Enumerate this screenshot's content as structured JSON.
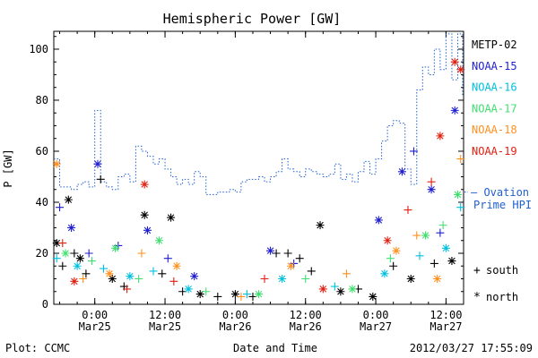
{
  "chart_data": {
    "type": "scatter",
    "title": "Hemispheric Power [GW]",
    "ylabel": "P [GW]",
    "xlabel": "Date and Time",
    "xlim": [
      "2012-03-24T17:00",
      "2012-03-27T15:00"
    ],
    "ylim": [
      0,
      107
    ],
    "yticks": [
      0,
      20,
      40,
      60,
      80,
      100
    ],
    "xticks": [
      {
        "t": "2012-03-25T00:00",
        "line1": "0:00",
        "line2": "Mar25"
      },
      {
        "t": "2012-03-25T12:00",
        "line1": "12:00",
        "line2": "Mar25"
      },
      {
        "t": "2012-03-26T00:00",
        "line1": "0:00",
        "line2": "Mar26"
      },
      {
        "t": "2012-03-26T12:00",
        "line1": "12:00",
        "line2": "Mar26"
      },
      {
        "t": "2012-03-27T00:00",
        "line1": "0:00",
        "line2": "Mar27"
      },
      {
        "t": "2012-03-27T12:00",
        "line1": "12:00",
        "line2": "Mar27"
      }
    ],
    "legend_position": "right",
    "series": [
      {
        "name": "METP-02",
        "color": "#000000",
        "points": [
          [
            "2012-03-24T17:30",
            24,
            "n"
          ],
          [
            "2012-03-24T18:30",
            15,
            "s"
          ],
          [
            "2012-03-24T19:30",
            41,
            "n"
          ],
          [
            "2012-03-24T20:30",
            20,
            "s"
          ],
          [
            "2012-03-24T21:30",
            18,
            "n"
          ],
          [
            "2012-03-24T22:30",
            12,
            "s"
          ],
          [
            "2012-03-25T01:00",
            49,
            "s"
          ],
          [
            "2012-03-25T03:00",
            10,
            "n"
          ],
          [
            "2012-03-25T05:00",
            7,
            "s"
          ],
          [
            "2012-03-25T08:30",
            35,
            "n"
          ],
          [
            "2012-03-25T11:30",
            12,
            "s"
          ],
          [
            "2012-03-25T13:00",
            34,
            "n"
          ],
          [
            "2012-03-25T15:00",
            5,
            "s"
          ],
          [
            "2012-03-25T18:00",
            4,
            "n"
          ],
          [
            "2012-03-25T21:00",
            3,
            "s"
          ],
          [
            "2012-03-26T00:00",
            4,
            "n"
          ],
          [
            "2012-03-26T03:00",
            3,
            "s"
          ],
          [
            "2012-03-26T07:00",
            20,
            "s"
          ],
          [
            "2012-03-26T09:00",
            20,
            "s"
          ],
          [
            "2012-03-26T11:00",
            18,
            "s"
          ],
          [
            "2012-03-26T13:00",
            13,
            "s"
          ],
          [
            "2012-03-26T14:30",
            31,
            "n"
          ],
          [
            "2012-03-26T18:00",
            5,
            "n"
          ],
          [
            "2012-03-26T21:00",
            6,
            "s"
          ],
          [
            "2012-03-26T23:30",
            3,
            "n"
          ],
          [
            "2012-03-27T03:00",
            15,
            "s"
          ],
          [
            "2012-03-27T06:00",
            10,
            "n"
          ],
          [
            "2012-03-27T10:00",
            16,
            "s"
          ],
          [
            "2012-03-27T13:00",
            17,
            "n"
          ]
        ]
      },
      {
        "name": "NOAA-15",
        "color": "#1f1fd0",
        "points": [
          [
            "2012-03-24T18:00",
            38,
            "s"
          ],
          [
            "2012-03-24T20:00",
            30,
            "n"
          ],
          [
            "2012-03-24T23:00",
            20,
            "s"
          ],
          [
            "2012-03-25T00:30",
            55,
            "n"
          ],
          [
            "2012-03-25T04:00",
            23,
            "s"
          ],
          [
            "2012-03-25T09:00",
            29,
            "n"
          ],
          [
            "2012-03-25T12:30",
            18,
            "s"
          ],
          [
            "2012-03-25T17:00",
            11,
            "n"
          ],
          [
            "2012-03-26T06:00",
            21,
            "n"
          ],
          [
            "2012-03-26T10:00",
            16,
            "s"
          ],
          [
            "2012-03-27T00:30",
            33,
            "n"
          ],
          [
            "2012-03-27T04:30",
            52,
            "n"
          ],
          [
            "2012-03-27T06:30",
            60,
            "s"
          ],
          [
            "2012-03-27T09:30",
            45,
            "n"
          ],
          [
            "2012-03-27T13:30",
            76,
            "n"
          ],
          [
            "2012-03-27T11:00",
            28,
            "s"
          ]
        ]
      },
      {
        "name": "NOAA-16",
        "color": "#00c0e0",
        "points": [
          [
            "2012-03-24T17:30",
            18,
            "s"
          ],
          [
            "2012-03-24T21:00",
            15,
            "n"
          ],
          [
            "2012-03-25T01:30",
            14,
            "s"
          ],
          [
            "2012-03-25T06:00",
            11,
            "n"
          ],
          [
            "2012-03-25T10:00",
            13,
            "s"
          ],
          [
            "2012-03-25T16:00",
            6,
            "n"
          ],
          [
            "2012-03-26T02:00",
            4,
            "s"
          ],
          [
            "2012-03-26T08:00",
            10,
            "n"
          ],
          [
            "2012-03-26T17:00",
            7,
            "s"
          ],
          [
            "2012-03-27T01:30",
            12,
            "n"
          ],
          [
            "2012-03-27T07:30",
            19,
            "s"
          ],
          [
            "2012-03-27T12:00",
            22,
            "n"
          ],
          [
            "2012-03-27T14:30",
            38,
            "s"
          ]
        ]
      },
      {
        "name": "NOAA-17",
        "color": "#40e070",
        "points": [
          [
            "2012-03-24T19:00",
            20,
            "n"
          ],
          [
            "2012-03-24T23:30",
            17,
            "s"
          ],
          [
            "2012-03-25T03:30",
            22,
            "n"
          ],
          [
            "2012-03-25T07:30",
            10,
            "s"
          ],
          [
            "2012-03-25T11:00",
            25,
            "n"
          ],
          [
            "2012-03-25T19:00",
            5,
            "s"
          ],
          [
            "2012-03-26T04:00",
            4,
            "n"
          ],
          [
            "2012-03-26T12:00",
            10,
            "s"
          ],
          [
            "2012-03-26T20:00",
            6,
            "n"
          ],
          [
            "2012-03-27T02:30",
            18,
            "s"
          ],
          [
            "2012-03-27T08:30",
            27,
            "n"
          ],
          [
            "2012-03-27T11:30",
            31,
            "s"
          ],
          [
            "2012-03-27T14:00",
            43,
            "n"
          ]
        ]
      },
      {
        "name": "NOAA-18",
        "color": "#ff9020",
        "points": [
          [
            "2012-03-24T17:30",
            55,
            "n"
          ],
          [
            "2012-03-24T22:00",
            10,
            "s"
          ],
          [
            "2012-03-25T02:30",
            12,
            "n"
          ],
          [
            "2012-03-25T08:00",
            20,
            "s"
          ],
          [
            "2012-03-25T14:00",
            15,
            "n"
          ],
          [
            "2012-03-26T01:00",
            3,
            "s"
          ],
          [
            "2012-03-26T09:30",
            15,
            "n"
          ],
          [
            "2012-03-26T19:00",
            12,
            "s"
          ],
          [
            "2012-03-27T03:30",
            21,
            "n"
          ],
          [
            "2012-03-27T07:00",
            27,
            "s"
          ],
          [
            "2012-03-27T10:30",
            10,
            "n"
          ],
          [
            "2012-03-27T14:30",
            57,
            "s"
          ]
        ]
      },
      {
        "name": "NOAA-19",
        "color": "#e02010",
        "points": [
          [
            "2012-03-24T18:30",
            24,
            "s"
          ],
          [
            "2012-03-24T20:30",
            9,
            "n"
          ],
          [
            "2012-03-25T05:30",
            6,
            "s"
          ],
          [
            "2012-03-25T08:30",
            47,
            "n"
          ],
          [
            "2012-03-25T13:30",
            9,
            "s"
          ],
          [
            "2012-03-26T05:00",
            10,
            "s"
          ],
          [
            "2012-03-26T15:00",
            6,
            "n"
          ],
          [
            "2012-03-27T02:00",
            25,
            "n"
          ],
          [
            "2012-03-27T05:30",
            37,
            "s"
          ],
          [
            "2012-03-27T09:30",
            48,
            "s"
          ],
          [
            "2012-03-27T11:00",
            66,
            "n"
          ],
          [
            "2012-03-27T13:30",
            95,
            "n"
          ],
          [
            "2012-03-27T14:30",
            92,
            "n"
          ]
        ]
      }
    ],
    "ovation": {
      "name": "Ovation Prime HPI",
      "legend_label": "– Ovation Prime HPI",
      "color": "#2060d0",
      "points": [
        [
          "2012-03-24T17:00",
          57
        ],
        [
          "2012-03-24T18:00",
          46
        ],
        [
          "2012-03-24T19:00",
          46
        ],
        [
          "2012-03-24T20:00",
          45
        ],
        [
          "2012-03-24T21:00",
          47
        ],
        [
          "2012-03-24T22:00",
          48
        ],
        [
          "2012-03-24T23:00",
          46
        ],
        [
          "2012-03-25T00:00",
          76
        ],
        [
          "2012-03-25T01:00",
          48
        ],
        [
          "2012-03-25T02:00",
          46
        ],
        [
          "2012-03-25T03:00",
          45
        ],
        [
          "2012-03-25T04:00",
          50
        ],
        [
          "2012-03-25T05:00",
          51
        ],
        [
          "2012-03-25T06:00",
          48
        ],
        [
          "2012-03-25T07:00",
          62
        ],
        [
          "2012-03-25T08:00",
          60
        ],
        [
          "2012-03-25T09:00",
          58
        ],
        [
          "2012-03-25T10:00",
          55
        ],
        [
          "2012-03-25T11:00",
          57
        ],
        [
          "2012-03-25T12:00",
          53
        ],
        [
          "2012-03-25T13:00",
          50
        ],
        [
          "2012-03-25T14:00",
          47
        ],
        [
          "2012-03-25T15:00",
          49
        ],
        [
          "2012-03-25T16:00",
          47
        ],
        [
          "2012-03-25T17:00",
          52
        ],
        [
          "2012-03-25T18:00",
          50
        ],
        [
          "2012-03-25T19:00",
          43
        ],
        [
          "2012-03-25T20:00",
          43
        ],
        [
          "2012-03-25T21:00",
          44
        ],
        [
          "2012-03-25T22:00",
          44
        ],
        [
          "2012-03-25T23:00",
          45
        ],
        [
          "2012-03-26T00:00",
          44
        ],
        [
          "2012-03-26T01:00",
          48
        ],
        [
          "2012-03-26T02:00",
          49
        ],
        [
          "2012-03-26T03:00",
          49
        ],
        [
          "2012-03-26T04:00",
          50
        ],
        [
          "2012-03-26T05:00",
          48
        ],
        [
          "2012-03-26T06:00",
          50
        ],
        [
          "2012-03-26T07:00",
          52
        ],
        [
          "2012-03-26T08:00",
          57
        ],
        [
          "2012-03-26T09:00",
          53
        ],
        [
          "2012-03-26T10:00",
          52
        ],
        [
          "2012-03-26T11:00",
          50
        ],
        [
          "2012-03-26T12:00",
          53
        ],
        [
          "2012-03-26T13:00",
          52
        ],
        [
          "2012-03-26T14:00",
          51
        ],
        [
          "2012-03-26T15:00",
          50
        ],
        [
          "2012-03-26T16:00",
          51
        ],
        [
          "2012-03-26T17:00",
          55
        ],
        [
          "2012-03-26T18:00",
          49
        ],
        [
          "2012-03-26T19:00",
          51
        ],
        [
          "2012-03-26T20:00",
          48
        ],
        [
          "2012-03-26T21:00",
          52
        ],
        [
          "2012-03-26T22:00",
          56
        ],
        [
          "2012-03-26T23:00",
          51
        ],
        [
          "2012-03-27T00:00",
          57
        ],
        [
          "2012-03-27T01:00",
          64
        ],
        [
          "2012-03-27T02:00",
          70
        ],
        [
          "2012-03-27T03:00",
          72
        ],
        [
          "2012-03-27T04:00",
          71
        ],
        [
          "2012-03-27T05:00",
          53
        ],
        [
          "2012-03-27T06:00",
          47
        ],
        [
          "2012-03-27T07:00",
          84
        ],
        [
          "2012-03-27T08:00",
          93
        ],
        [
          "2012-03-27T09:00",
          90
        ],
        [
          "2012-03-27T10:00",
          100
        ],
        [
          "2012-03-27T11:00",
          92
        ],
        [
          "2012-03-27T12:00",
          106
        ],
        [
          "2012-03-27T13:00",
          88
        ],
        [
          "2012-03-27T14:00",
          106
        ],
        [
          "2012-03-27T15:00",
          82
        ]
      ]
    },
    "marker_legend": [
      {
        "symbol": "+",
        "label": "south"
      },
      {
        "symbol": "*",
        "label": "north"
      }
    ]
  },
  "footer": {
    "left": "Plot: CCMC",
    "center": "Date and Time",
    "right": "2012/03/27 17:55:09"
  }
}
